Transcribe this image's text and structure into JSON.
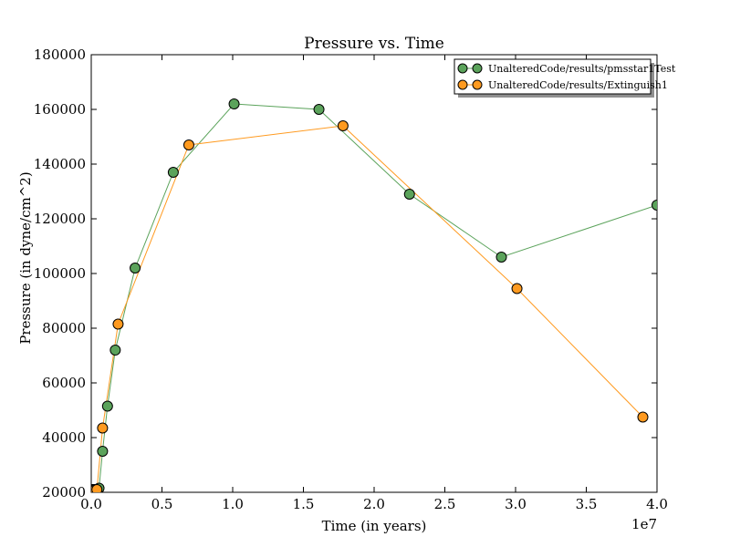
{
  "chart_data": {
    "type": "line",
    "title": "Pressure vs. Time",
    "xlabel": "Time (in years)",
    "ylabel": "Pressure (in dyne/cm^2)",
    "x_offset_label": "1e7",
    "xlim": [
      0,
      40000000
    ],
    "ylim": [
      20000,
      180000
    ],
    "x_ticks": [
      0,
      5000000,
      10000000,
      15000000,
      20000000,
      25000000,
      30000000,
      35000000,
      40000000
    ],
    "x_tick_labels": [
      "0.0",
      "0.5",
      "1.0",
      "1.5",
      "2.0",
      "2.5",
      "3.0",
      "3.5",
      "4.0"
    ],
    "y_ticks": [
      20000,
      40000,
      60000,
      80000,
      100000,
      120000,
      140000,
      160000,
      180000
    ],
    "y_tick_labels": [
      "20000",
      "40000",
      "60000",
      "80000",
      "100000",
      "120000",
      "140000",
      "160000",
      "180000"
    ],
    "grid": false,
    "legend_position": "top-right",
    "series": [
      {
        "name": "UnalteredCode/results/pmsstar1Test",
        "color": "#5ba35b",
        "x": [
          0,
          100000,
          200000,
          300000,
          400000,
          550000,
          800000,
          1150000,
          1700000,
          3100000,
          5800000,
          10100000,
          16100000,
          22500000,
          29000000,
          40000000
        ],
        "y": [
          21000,
          21000,
          21000,
          21000,
          21000,
          21500,
          35000,
          51500,
          72000,
          102000,
          137000,
          162000,
          160000,
          129000,
          106000,
          125000
        ]
      },
      {
        "name": "UnalteredCode/results/Extinguish1",
        "color": "#ff9a1f",
        "x": [
          0,
          100000,
          200000,
          300000,
          400000,
          800000,
          1900000,
          6900000,
          17800000,
          30100000,
          39000000
        ],
        "y": [
          21000,
          21000,
          21000,
          21000,
          21000,
          43500,
          81500,
          147000,
          154000,
          94500,
          47500
        ]
      }
    ]
  }
}
